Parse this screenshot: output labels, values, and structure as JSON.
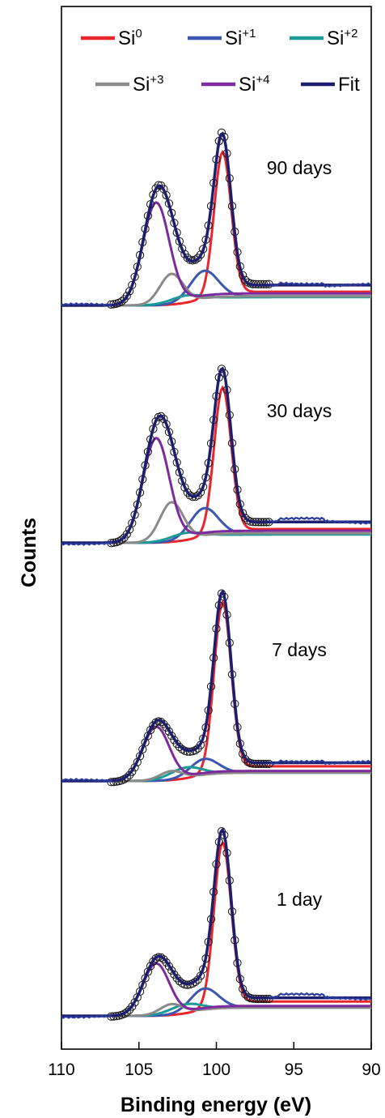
{
  "chart_data": {
    "type": "line",
    "xlabel": "Binding energy (eV)",
    "ylabel": "Counts",
    "x_reversed": true,
    "xlim": [
      110,
      90
    ],
    "xticks": [
      110,
      105,
      100,
      95,
      90
    ],
    "legend": {
      "placement": "top",
      "entries": [
        {
          "base": "Si",
          "sup": "0",
          "color": "#e8262b"
        },
        {
          "base": "Si",
          "sup": "+1",
          "color": "#3b57b0"
        },
        {
          "base": "Si",
          "sup": "+2",
          "color": "#1b9a96"
        },
        {
          "base": "Si",
          "sup": "+3",
          "color": "#8a8a8a"
        },
        {
          "base": "Si",
          "sup": "+4",
          "color": "#7c2a9c"
        },
        {
          "base": "",
          "sup": "",
          "label": "Fit",
          "color": "#1d1f6e"
        }
      ]
    },
    "components": [
      {
        "key": "si0",
        "color": "#e8262b",
        "center": 99.6,
        "width": 0.55
      },
      {
        "key": "si1",
        "color": "#3b57b0",
        "center": 100.8,
        "width": 0.9
      },
      {
        "key": "si2",
        "color": "#1b9a96",
        "center": 102.0,
        "width": 1.0
      },
      {
        "key": "si3",
        "color": "#8a8a8a",
        "center": 102.9,
        "width": 0.75
      },
      {
        "key": "si4",
        "color": "#7c2a9c",
        "center": 103.9,
        "width": 0.85
      }
    ],
    "panels": [
      {
        "label": "90 days",
        "amplitudes": {
          "si0": 0.81,
          "si1": 0.16,
          "si2": 0.04,
          "si3": 0.17,
          "si4": 0.57
        }
      },
      {
        "label": "30 days",
        "amplitudes": {
          "si0": 0.82,
          "si1": 0.16,
          "si2": 0.04,
          "si3": 0.22,
          "si4": 0.58
        }
      },
      {
        "label": "7 days",
        "amplitudes": {
          "si0": 0.95,
          "si1": 0.09,
          "si2": 0.06,
          "si3": 0.05,
          "si4": 0.3
        }
      },
      {
        "label": "1 day",
        "amplitudes": {
          "si0": 0.92,
          "si1": 0.12,
          "si2": 0.05,
          "si3": 0.06,
          "si4": 0.29
        }
      }
    ]
  }
}
